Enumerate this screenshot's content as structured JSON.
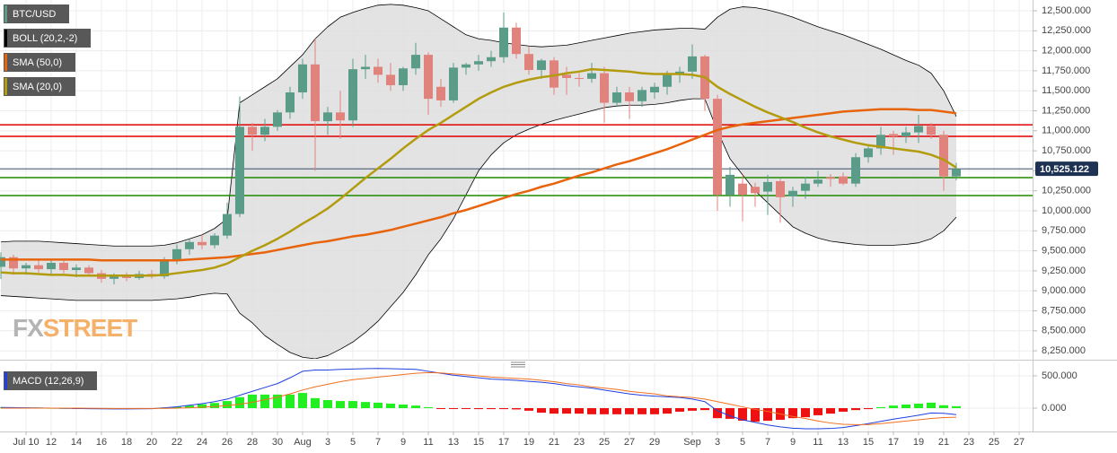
{
  "chart_data": [
    {
      "type": "candlestick",
      "categories": [
        null,
        null,
        "Jul 10",
        null,
        "12",
        null,
        "14",
        null,
        "16",
        null,
        "18",
        null,
        "20",
        null,
        "22",
        null,
        "24",
        null,
        "26",
        null,
        "28",
        null,
        "30",
        null,
        "Aug",
        null,
        "3",
        null,
        "5",
        null,
        "7",
        null,
        "9",
        null,
        "11",
        null,
        "13",
        null,
        "15",
        null,
        "17",
        null,
        "19",
        null,
        "21",
        null,
        "23",
        null,
        "25",
        null,
        "27",
        null,
        "29",
        null,
        null,
        "Sep",
        null,
        "3",
        null,
        "5",
        null,
        "7",
        null,
        "9",
        null,
        "11",
        null,
        "13",
        null,
        "15",
        null,
        "17",
        null,
        "19",
        null,
        "21",
        null,
        "23",
        null,
        "25",
        null,
        "27"
      ],
      "candles": {
        "name": "BTC/USD",
        "up_color": "#5b9c89",
        "down_color": "#e0837d",
        "open": [
          9300,
          9420,
          9280,
          9320,
          9270,
          9350,
          9260,
          9290,
          9220,
          9150,
          9180,
          9160,
          9210,
          9180,
          9380,
          9520,
          9610,
          9570,
          9690,
          9960,
          11050,
          10950,
          11050,
          11230,
          11480,
          11830,
          11120,
          11230,
          11130,
          11770,
          11800,
          11700,
          11570,
          11780,
          11950,
          11550,
          11380,
          11790,
          11830,
          11870,
          11920,
          12290,
          11960,
          11760,
          11880,
          11700,
          11660,
          11650,
          11720,
          11350,
          11480,
          11370,
          11480,
          11550,
          11710,
          11740,
          11930,
          11400,
          10200,
          10340,
          10300,
          10240,
          10370,
          10180,
          10250,
          10340,
          10420,
          10430,
          10340,
          10670,
          10780,
          10960,
          10930,
          10980,
          11060,
          10950,
          10430,
          null,
          null,
          null,
          null,
          null
        ],
        "high": [
          9480,
          9450,
          9350,
          9380,
          9400,
          9380,
          9330,
          9320,
          9260,
          9220,
          9230,
          9250,
          9260,
          9420,
          9580,
          9650,
          9700,
          9720,
          10100,
          11430,
          11100,
          11150,
          11260,
          11550,
          11900,
          12150,
          11300,
          11500,
          11900,
          11950,
          11900,
          11850,
          11800,
          12100,
          11980,
          11650,
          11850,
          11850,
          11950,
          12000,
          12480,
          12350,
          12050,
          11900,
          11920,
          11800,
          11720,
          11850,
          11800,
          11550,
          11550,
          11550,
          11600,
          11750,
          11800,
          12080,
          11950,
          11450,
          10550,
          10450,
          10350,
          10450,
          10400,
          10300,
          10420,
          10500,
          10460,
          10480,
          10720,
          10820,
          11050,
          11000,
          11050,
          11200,
          11100,
          11000,
          10600,
          null,
          null,
          null,
          null,
          null
        ],
        "low": [
          9150,
          9200,
          9200,
          9230,
          9200,
          9220,
          9170,
          9180,
          9100,
          9080,
          9120,
          9140,
          9150,
          9150,
          9330,
          9450,
          9520,
          9530,
          9650,
          9920,
          10750,
          10870,
          11000,
          11150,
          11400,
          10500,
          10950,
          10900,
          11050,
          11650,
          11600,
          11500,
          11500,
          11700,
          11200,
          11300,
          11350,
          11700,
          11750,
          11800,
          11850,
          11900,
          11700,
          11650,
          11450,
          11450,
          11550,
          11600,
          11100,
          11300,
          11150,
          11300,
          11400,
          11450,
          11600,
          11650,
          11250,
          10000,
          10050,
          9870,
          10050,
          9950,
          9850,
          10050,
          10150,
          10300,
          10300,
          10320,
          10300,
          10600,
          10700,
          10700,
          10850,
          10850,
          10900,
          10250,
          10380,
          null,
          null,
          null,
          null,
          null
        ],
        "close": [
          9420,
          9280,
          9320,
          9270,
          9350,
          9260,
          9290,
          9220,
          9150,
          9180,
          9160,
          9210,
          9180,
          9380,
          9520,
          9610,
          9570,
          9690,
          9960,
          11050,
          10950,
          11050,
          11230,
          11480,
          11830,
          11120,
          11230,
          11130,
          11770,
          11800,
          11700,
          11570,
          11780,
          11950,
          11400,
          11380,
          11790,
          11830,
          11870,
          11920,
          12290,
          11960,
          11760,
          11880,
          11540,
          11660,
          11650,
          11720,
          11350,
          11480,
          11370,
          11510,
          11550,
          11710,
          11740,
          11930,
          11400,
          10200,
          10450,
          10200,
          10220,
          10360,
          10170,
          10250,
          10340,
          10390,
          10400,
          10340,
          10670,
          10780,
          10950,
          10930,
          10980,
          11060,
          10950,
          10430,
          10525.122,
          null,
          null,
          null,
          null,
          null
        ]
      },
      "bands": {
        "name": "BOLL (20,2,-2)",
        "color": "#000000",
        "fill": "#dedede",
        "upper": [
          9610,
          9620,
          9620,
          9620,
          9610,
          9600,
          9590,
          9580,
          9570,
          9560,
          9560,
          9560,
          9560,
          9570,
          9600,
          9650,
          9700,
          9780,
          9900,
          11350,
          11450,
          11550,
          11650,
          11800,
          11950,
          12150,
          12300,
          12420,
          12480,
          12530,
          12570,
          12580,
          12570,
          12540,
          12500,
          12400,
          12300,
          12200,
          12150,
          12130,
          12100,
          12080,
          12060,
          12050,
          12060,
          12070,
          12100,
          12130,
          12160,
          12190,
          12220,
          12240,
          12260,
          12270,
          12280,
          12280,
          12270,
          12420,
          12520,
          12550,
          12540,
          12510,
          12470,
          12420,
          12360,
          12300,
          12250,
          12200,
          12140,
          12080,
          12020,
          11950,
          11880,
          11820,
          11720,
          11500,
          11180,
          null,
          null,
          null,
          null,
          null
        ],
        "lower": [
          8940,
          8930,
          8920,
          8910,
          8900,
          8890,
          8880,
          8880,
          8880,
          8880,
          8880,
          8880,
          8880,
          8890,
          8900,
          8920,
          8950,
          8970,
          8960,
          8720,
          8600,
          8440,
          8330,
          8230,
          8170,
          8150,
          8190,
          8270,
          8360,
          8480,
          8620,
          8800,
          8980,
          9200,
          9450,
          9650,
          9900,
          10200,
          10500,
          10700,
          10850,
          10950,
          11020,
          11080,
          11130,
          11170,
          11210,
          11250,
          11290,
          11310,
          11320,
          11320,
          11330,
          11350,
          11380,
          11400,
          11400,
          11000,
          10650,
          10450,
          10250,
          10100,
          9950,
          9800,
          9720,
          9660,
          9620,
          9600,
          9580,
          9570,
          9570,
          9570,
          9580,
          9600,
          9650,
          9750,
          9920,
          null,
          null,
          null,
          null,
          null
        ]
      },
      "series": [
        {
          "name": "SMA (50,0)",
          "color": "#e8640c",
          "values": [
            9390,
            9390,
            9390,
            9390,
            9390,
            9390,
            9390,
            9390,
            9380,
            9380,
            9380,
            9380,
            9380,
            9380,
            9380,
            9390,
            9400,
            9410,
            9420,
            9440,
            9460,
            9480,
            9510,
            9540,
            9570,
            9600,
            9620,
            9650,
            9680,
            9700,
            9730,
            9760,
            9800,
            9840,
            9880,
            9920,
            9970,
            10010,
            10060,
            10110,
            10160,
            10210,
            10250,
            10300,
            10340,
            10390,
            10440,
            10480,
            10530,
            10580,
            10620,
            10670,
            10720,
            10770,
            10830,
            10890,
            10950,
            11010,
            11050,
            11080,
            11100,
            11120,
            11140,
            11160,
            11180,
            11200,
            11220,
            11240,
            11250,
            11260,
            11270,
            11270,
            11270,
            11260,
            11260,
            11240,
            11220,
            null,
            null,
            null,
            null,
            null
          ]
        },
        {
          "name": "SMA (20,0)",
          "color": "#b39b0e",
          "values": [
            9230,
            9220,
            9220,
            9210,
            9200,
            9200,
            9190,
            9190,
            9190,
            9190,
            9190,
            9190,
            9190,
            9200,
            9220,
            9240,
            9260,
            9290,
            9340,
            9420,
            9500,
            9570,
            9650,
            9740,
            9840,
            9930,
            10030,
            10150,
            10280,
            10410,
            10530,
            10650,
            10780,
            10900,
            11010,
            11100,
            11200,
            11300,
            11400,
            11480,
            11550,
            11600,
            11640,
            11670,
            11690,
            11720,
            11740,
            11770,
            11760,
            11750,
            11740,
            11720,
            11710,
            11710,
            11710,
            11700,
            11670,
            11550,
            11460,
            11380,
            11300,
            11230,
            11170,
            11110,
            11040,
            10980,
            10930,
            10890,
            10850,
            10820,
            10800,
            10780,
            10760,
            10740,
            10700,
            10640,
            10540,
            null,
            null,
            null,
            null,
            null
          ]
        }
      ],
      "levels": [
        {
          "value": 11075,
          "color": "#e00000"
        },
        {
          "value": 10930,
          "color": "#e00000"
        },
        {
          "value": 10415,
          "color": "#1e8a00"
        },
        {
          "value": 10190,
          "color": "#1e8a00"
        }
      ],
      "last_price": {
        "value": 10525.122,
        "label": "10,525.122",
        "color": "#1e3354"
      },
      "ylim": [
        8150,
        12635
      ],
      "yticks": [
        {
          "value": 8250,
          "label": "8,250.000"
        },
        {
          "value": 8500,
          "label": "8,500.000"
        },
        {
          "value": 8750,
          "label": "8,750.000"
        },
        {
          "value": 9000,
          "label": "9,000.000"
        },
        {
          "value": 9250,
          "label": "9,250.000"
        },
        {
          "value": 9500,
          "label": "9,500.000"
        },
        {
          "value": 9750,
          "label": "9,750.000"
        },
        {
          "value": 10000,
          "label": "10,000.000"
        },
        {
          "value": 10250,
          "label": "10,250.000"
        },
        {
          "value": 10500,
          "label": "10,500.000"
        },
        {
          "value": 10750,
          "label": "10,750.000"
        },
        {
          "value": 11000,
          "label": "11,000.000"
        },
        {
          "value": 11250,
          "label": "11,250.000"
        },
        {
          "value": 11500,
          "label": "11,500.000"
        },
        {
          "value": 11750,
          "label": "11,750.000"
        },
        {
          "value": 12000,
          "label": "12,000.000"
        },
        {
          "value": 12250,
          "label": "12,250.000"
        },
        {
          "value": 12500,
          "label": "12,500.000"
        }
      ],
      "grid": true,
      "watermark": {
        "first": "FX",
        "second": "STREET"
      }
    },
    {
      "type": "macd",
      "name": "MACD (12,26,9)",
      "up_color": "#22ee22",
      "down_color": "#ee1111",
      "histogram": [
        15,
        12,
        10,
        8,
        5,
        3,
        -5,
        -8,
        -10,
        -12,
        -10,
        -8,
        -5,
        10,
        20,
        40,
        60,
        80,
        110,
        170,
        210,
        210,
        210,
        210,
        235,
        155,
        125,
        110,
        110,
        95,
        85,
        70,
        55,
        40,
        15,
        -5,
        -10,
        -12,
        -15,
        -15,
        -15,
        -20,
        -40,
        -70,
        -85,
        -85,
        -85,
        -95,
        -95,
        -95,
        -95,
        -95,
        -95,
        -85,
        -55,
        -40,
        -30,
        -155,
        -165,
        -195,
        -210,
        -195,
        -180,
        -155,
        -140,
        -110,
        -85,
        -55,
        -30,
        -15,
        15,
        40,
        55,
        70,
        85,
        45,
        30,
        null,
        null,
        null,
        null,
        null
      ],
      "macd_line": {
        "color": "#2040e0",
        "values": [
          10,
          8,
          5,
          3,
          0,
          -3,
          -5,
          -8,
          -10,
          -12,
          -12,
          -10,
          -8,
          5,
          20,
          45,
          70,
          100,
          140,
          200,
          260,
          320,
          380,
          470,
          570,
          590,
          590,
          600,
          605,
          610,
          615,
          610,
          605,
          600,
          570,
          540,
          510,
          490,
          470,
          450,
          440,
          430,
          415,
          400,
          380,
          350,
          330,
          310,
          280,
          250,
          220,
          200,
          185,
          175,
          165,
          140,
          100,
          -40,
          -120,
          -180,
          -220,
          -260,
          -290,
          -310,
          -320,
          -320,
          -315,
          -300,
          -270,
          -240,
          -205,
          -170,
          -140,
          -110,
          -75,
          -80,
          -100,
          null,
          null,
          null,
          null,
          null
        ]
      },
      "signal_line": {
        "color": "#f07020",
        "values": [
          0,
          0,
          0,
          0,
          0,
          0,
          0,
          -2,
          -3,
          -5,
          -5,
          -5,
          -5,
          -3,
          0,
          5,
          15,
          25,
          40,
          60,
          90,
          130,
          170,
          220,
          280,
          330,
          370,
          410,
          440,
          460,
          480,
          500,
          520,
          540,
          550,
          545,
          530,
          515,
          500,
          480,
          470,
          460,
          450,
          430,
          410,
          380,
          360,
          330,
          310,
          290,
          260,
          240,
          220,
          190,
          175,
          165,
          140,
          100,
          60,
          20,
          -20,
          -50,
          -90,
          -130,
          -160,
          -200,
          -230,
          -250,
          -255,
          -255,
          -240,
          -220,
          -200,
          -180,
          -160,
          -145,
          -140,
          null,
          null,
          null,
          null,
          null
        ]
      },
      "ylim": [
        -361,
        694
      ],
      "yticks": [
        {
          "value": 500,
          "label": "500.000"
        },
        {
          "value": 0,
          "label": "0.000"
        }
      ],
      "grid": true
    }
  ]
}
